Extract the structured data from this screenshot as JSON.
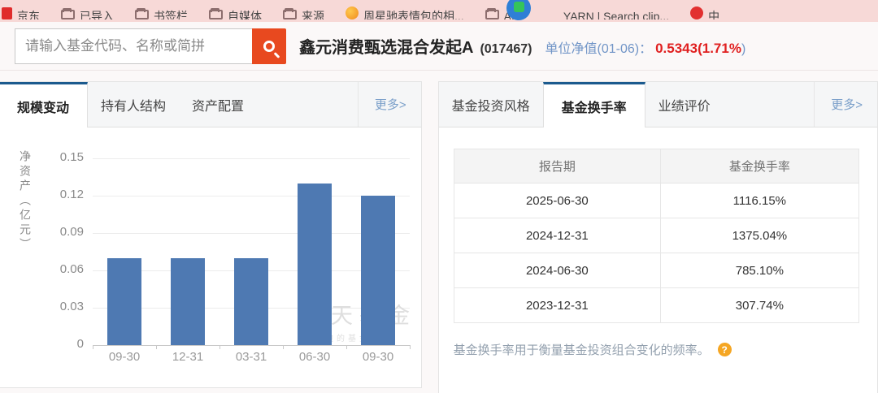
{
  "bookmarks_bar": {
    "items": [
      {
        "label": "京东",
        "icon": "jd-icon"
      },
      {
        "label": "已导入",
        "icon": "folder-icon"
      },
      {
        "label": "书签栏",
        "icon": "folder-icon"
      },
      {
        "label": "自媒体",
        "icon": "folder-icon"
      },
      {
        "label": "来源",
        "icon": "folder-icon"
      },
      {
        "label": "周星驰表情包的相...",
        "icon": "emoji-icon"
      },
      {
        "label": "AI",
        "icon": "folder-icon"
      },
      {
        "label": "YARN | Search clip...",
        "icon": "yarn-icon"
      },
      {
        "label": "中",
        "icon": "red-dot-icon"
      }
    ]
  },
  "search": {
    "placeholder": "请输入基金代码、名称或简拼"
  },
  "fund": {
    "name": "鑫元消费甄选混合发起A",
    "code": "(017467)",
    "nav_label": "单位净值(01-06)：",
    "nav_value": "0.5343(1.71%",
    "nav_suffix": ")"
  },
  "left_panel": {
    "tabs": [
      {
        "label": "规模变动",
        "active": true
      },
      {
        "label": "持有人结构",
        "active": false
      },
      {
        "label": "资产配置",
        "active": false
      }
    ],
    "more": "更多>"
  },
  "right_panel": {
    "tabs": [
      {
        "label": "基金投资风格",
        "active": false
      },
      {
        "label": "基金换手率",
        "active": true
      },
      {
        "label": "业绩评价",
        "active": false
      }
    ],
    "more": "更多>",
    "table": {
      "columns": [
        "报告期",
        "基金换手率"
      ],
      "rows": [
        [
          "2025-06-30",
          "1116.15%"
        ],
        [
          "2024-12-31",
          "1375.04%"
        ],
        [
          "2024-06-30",
          "785.10%"
        ],
        [
          "2023-12-31",
          "307.74%"
        ]
      ]
    },
    "note": "基金换手率用于衡量基金投资组合变化的频率。",
    "help_icon": "?"
  },
  "chart_data": {
    "type": "bar",
    "title": "",
    "ylabel": "净资产（亿元）",
    "xlabel": "",
    "categories": [
      "09-30",
      "12-31",
      "03-31",
      "06-30",
      "09-30"
    ],
    "values": [
      0.07,
      0.07,
      0.07,
      0.13,
      0.12
    ],
    "yticks": [
      0,
      0.03,
      0.06,
      0.09,
      0.12,
      0.15
    ],
    "ylim": [
      0,
      0.15
    ],
    "grid": true,
    "legend": false,
    "bar_color": "#4e79b2"
  },
  "watermark": {
    "title": "天天基金",
    "subtitle": "您身边的基金专家"
  },
  "colors": {
    "bookmarks_bg": "#f7d9d7",
    "search_button": "#e8491f",
    "bar": "#4e79b2",
    "active_tab_border": "#1b5a8e",
    "nav_label_blue": "#7195c7",
    "value_red": "#e02020",
    "link_blue": "#7a9fc9"
  }
}
